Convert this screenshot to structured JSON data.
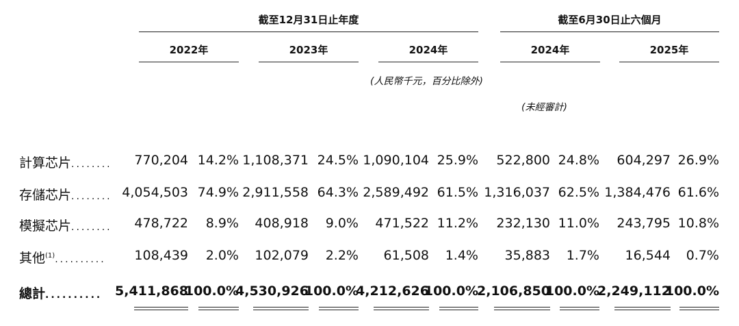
{
  "header": {
    "group1": "截至12月31日止年度",
    "group2": "截至6月30日止六個月",
    "years": [
      "2022年",
      "2023年",
      "2024年",
      "2024年",
      "2025年"
    ],
    "currency_note": "(人民幣千元，百分比除外)",
    "unaudited_note": "(未經審計)"
  },
  "rows": [
    {
      "label": "計算芯片",
      "sup": "",
      "dots": "........",
      "total": false,
      "values": [
        "770,204",
        "14.2%",
        "1,108,371",
        "24.5%",
        "1,090,104",
        "25.9%",
        "522,800",
        "24.8%",
        "604,297",
        "26.9%"
      ]
    },
    {
      "label": "存儲芯片",
      "sup": "",
      "dots": "........",
      "total": false,
      "values": [
        "4,054,503",
        "74.9%",
        "2,911,558",
        "64.3%",
        "2,589,492",
        "61.5%",
        "1,316,037",
        "62.5%",
        "1,384,476",
        "61.6%"
      ]
    },
    {
      "label": "模擬芯片",
      "sup": "",
      "dots": "........",
      "total": false,
      "values": [
        "478,722",
        "8.9%",
        "408,918",
        "9.0%",
        "471,522",
        "11.2%",
        "232,130",
        "11.0%",
        "243,795",
        "10.8%"
      ]
    },
    {
      "label": "其他",
      "sup": "(1)",
      "dots": "..........",
      "total": false,
      "values": [
        "108,439",
        "2.0%",
        "102,079",
        "2.2%",
        "61,508",
        "1.4%",
        "35,883",
        "1.7%",
        "16,544",
        "0.7%"
      ]
    },
    {
      "label": "總計",
      "sup": "",
      "dots": "..........",
      "total": true,
      "values": [
        "5,411,868",
        "100.0%",
        "4,530,926",
        "100.0%",
        "4,212,626",
        "100.0%",
        "2,106,850",
        "100.0%",
        "2,249,112",
        "100.0%"
      ]
    }
  ]
}
